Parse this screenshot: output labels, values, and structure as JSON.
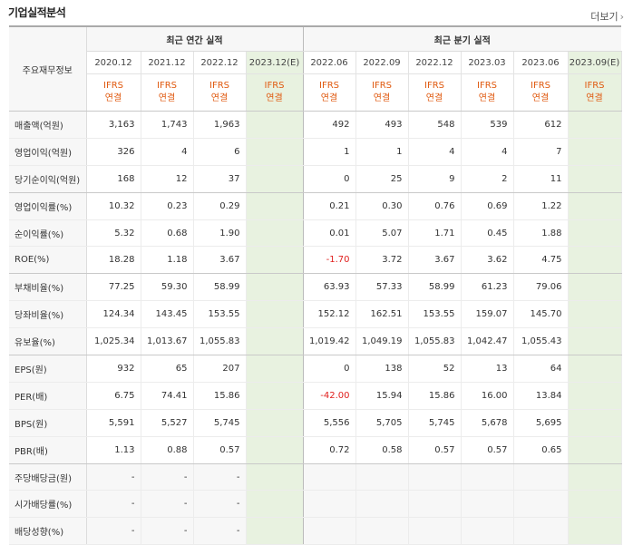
{
  "header": {
    "title": "기업실적분석",
    "more_label": "더보기",
    "more_icon": "chevron-right-icon"
  },
  "table": {
    "row_header_label": "주요재무정보",
    "annual_group_label": "최근 연간 실적",
    "quarter_group_label": "최근 분기 실적",
    "periods": [
      "2020.12",
      "2021.12",
      "2022.12",
      "2023.12(E)",
      "2022.06",
      "2022.09",
      "2022.12",
      "2023.03",
      "2023.06",
      "2023.09(E)"
    ],
    "standards": [
      [
        "IFRS",
        "연결"
      ],
      [
        "IFRS",
        "연결"
      ],
      [
        "IFRS",
        "연결"
      ],
      [
        "IFRS",
        "연결"
      ],
      [
        "IFRS",
        "연결"
      ],
      [
        "IFRS",
        "연결"
      ],
      [
        "IFRS",
        "연결"
      ],
      [
        "IFRS",
        "연결"
      ],
      [
        "IFRS",
        "연결"
      ],
      [
        "IFRS",
        "연결"
      ]
    ],
    "colors": {
      "estimate_bg": "#e8f2e0",
      "negative": "#e0201e",
      "ifrs_text": "#e05a10"
    },
    "rows": [
      {
        "label": "매출액(억원)",
        "values": [
          "3,163",
          "1,743",
          "1,963",
          "",
          "492",
          "493",
          "548",
          "539",
          "612",
          ""
        ]
      },
      {
        "label": "영업이익(억원)",
        "values": [
          "326",
          "4",
          "6",
          "",
          "1",
          "1",
          "4",
          "4",
          "7",
          ""
        ]
      },
      {
        "label": "당기순이익(억원)",
        "values": [
          "168",
          "12",
          "37",
          "",
          "0",
          "25",
          "9",
          "2",
          "11",
          ""
        ]
      },
      {
        "label": "영업이익률(%)",
        "values": [
          "10.32",
          "0.23",
          "0.29",
          "",
          "0.21",
          "0.30",
          "0.76",
          "0.69",
          "1.22",
          ""
        ]
      },
      {
        "label": "순이익률(%)",
        "values": [
          "5.32",
          "0.68",
          "1.90",
          "",
          "0.01",
          "5.07",
          "1.71",
          "0.45",
          "1.88",
          ""
        ]
      },
      {
        "label": "ROE(%)",
        "values": [
          "18.28",
          "1.18",
          "3.67",
          "",
          "-1.70",
          "3.72",
          "3.67",
          "3.62",
          "4.75",
          ""
        ]
      },
      {
        "label": "부채비율(%)",
        "values": [
          "77.25",
          "59.30",
          "58.99",
          "",
          "63.93",
          "57.33",
          "58.99",
          "61.23",
          "79.06",
          ""
        ]
      },
      {
        "label": "당좌비율(%)",
        "values": [
          "124.34",
          "143.45",
          "153.55",
          "",
          "152.12",
          "162.51",
          "153.55",
          "159.07",
          "145.70",
          ""
        ]
      },
      {
        "label": "유보율(%)",
        "values": [
          "1,025.34",
          "1,013.67",
          "1,055.83",
          "",
          "1,019.42",
          "1,049.19",
          "1,055.83",
          "1,042.47",
          "1,055.43",
          ""
        ]
      },
      {
        "label": "EPS(원)",
        "values": [
          "932",
          "65",
          "207",
          "",
          "0",
          "138",
          "52",
          "13",
          "64",
          ""
        ]
      },
      {
        "label": "PER(배)",
        "values": [
          "6.75",
          "74.41",
          "15.86",
          "",
          "-42.00",
          "15.94",
          "15.86",
          "16.00",
          "13.84",
          ""
        ]
      },
      {
        "label": "BPS(원)",
        "values": [
          "5,591",
          "5,527",
          "5,745",
          "",
          "5,556",
          "5,705",
          "5,745",
          "5,678",
          "5,695",
          ""
        ]
      },
      {
        "label": "PBR(배)",
        "values": [
          "1.13",
          "0.88",
          "0.57",
          "",
          "0.72",
          "0.58",
          "0.57",
          "0.57",
          "0.65",
          ""
        ]
      },
      {
        "label": "주당배당금(원)",
        "values": [
          "-",
          "-",
          "-",
          "",
          "",
          "",
          "",
          "",
          "",
          ""
        ]
      },
      {
        "label": "시가배당률(%)",
        "values": [
          "-",
          "-",
          "-",
          "",
          "",
          "",
          "",
          "",
          "",
          ""
        ]
      },
      {
        "label": "배당성향(%)",
        "values": [
          "-",
          "-",
          "-",
          "",
          "",
          "",
          "",
          "",
          "",
          ""
        ]
      }
    ]
  }
}
